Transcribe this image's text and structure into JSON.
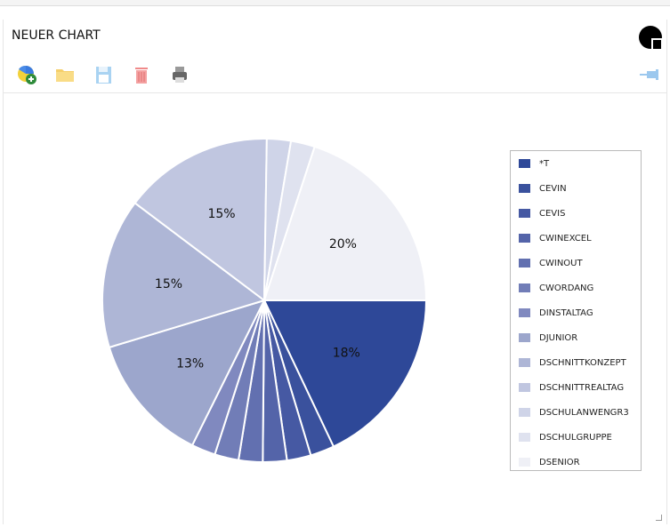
{
  "window": {
    "title": "NEUER CHART"
  },
  "toolbar": [
    {
      "name": "new-chart",
      "icon": "chart-add-icon"
    },
    {
      "name": "open",
      "icon": "folder-icon"
    },
    {
      "name": "save",
      "icon": "save-icon"
    },
    {
      "name": "delete",
      "icon": "trash-icon"
    },
    {
      "name": "print",
      "icon": "printer-icon"
    }
  ],
  "chart_data": {
    "type": "pie",
    "categories": [
      "*T",
      "CEVIN",
      "CEVIS",
      "CWINEXCEL",
      "CWINOUT",
      "CWORDANG",
      "DINSTALTAG",
      "DJUNIOR",
      "DSCHNITTKONZEPT",
      "DSCHNITTREALTAG",
      "DSCHULANWENGR3",
      "DSCHULGRUPPE",
      "DSENIOR"
    ],
    "values": [
      18,
      2.4,
      2.4,
      2.4,
      2.4,
      2.4,
      2.4,
      13,
      15,
      15,
      2.4,
      2.4,
      20
    ],
    "data_labels": [
      "18%",
      "",
      "",
      "",
      "",
      "",
      "",
      "13%",
      "15%",
      "15%",
      "",
      "",
      "20%"
    ],
    "colors": [
      "#2e4898",
      "#3a519d",
      "#4659a3",
      "#5464a9",
      "#6270b0",
      "#717db7",
      "#8089bf",
      "#9ca6cc",
      "#aeb6d6",
      "#c0c6e0",
      "#cfd4e8",
      "#dfe2ef",
      "#eff0f6"
    ],
    "legend_position": "right"
  }
}
